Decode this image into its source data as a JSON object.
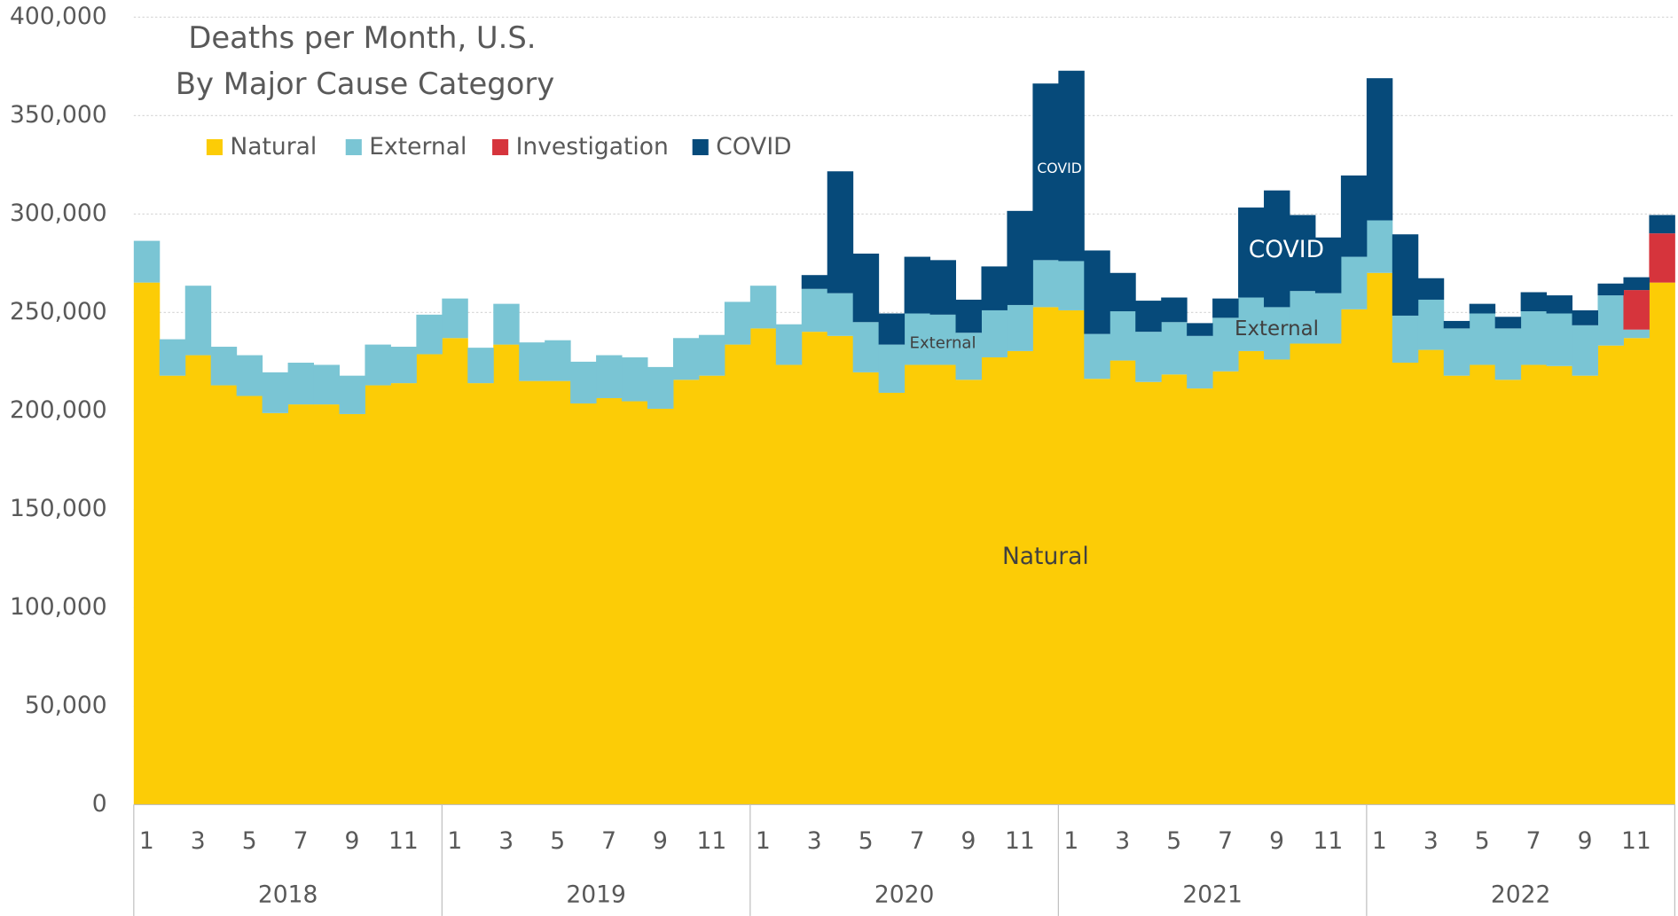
{
  "chart_data": {
    "type": "stacked-step-bar",
    "title": "Deaths per Month, U.S.",
    "subtitle": "By Major Cause Category",
    "categories": [
      "1",
      null,
      "3",
      null,
      "5",
      null,
      "7",
      null,
      "9",
      null,
      "11",
      null,
      "1",
      null,
      "3",
      null,
      "5",
      null,
      "7",
      null,
      "9",
      null,
      "11",
      null,
      "1",
      null,
      "3",
      null,
      "5",
      null,
      "7",
      null,
      "9",
      null,
      "11",
      null,
      "1",
      null,
      "3",
      null,
      "5",
      null,
      "7",
      null,
      "9",
      null,
      "11",
      null,
      "1",
      null,
      "3",
      null,
      "5",
      null,
      "7",
      null,
      "9",
      null,
      "11",
      null
    ],
    "years": [
      "2018",
      "2019",
      "2020",
      "2021",
      "2022"
    ],
    "series": [
      {
        "name": "Natural",
        "color": "#fccc06",
        "values": [
          265200,
          217900,
          228300,
          213000,
          207600,
          198900,
          203300,
          203300,
          198400,
          213000,
          214100,
          228800,
          237000,
          214100,
          233700,
          215200,
          215200,
          203800,
          206500,
          204900,
          201100,
          215800,
          217900,
          233700,
          241900,
          223400,
          240200,
          238100,
          219600,
          209200,
          223400,
          223400,
          215800,
          227200,
          230400,
          252700,
          251100,
          216300,
          225600,
          214700,
          218500,
          211400,
          220100,
          230400,
          226100,
          234200,
          234200,
          251600,
          270100,
          224500,
          231000,
          217900,
          223400,
          215800,
          223400,
          222800,
          217900,
          233200,
          237000,
          265200
        ]
      },
      {
        "name": "External",
        "color": "#7ac5d4",
        "values": [
          21200,
          18500,
          35300,
          19600,
          20700,
          20700,
          21200,
          20100,
          19500,
          20700,
          18500,
          20100,
          20100,
          18000,
          20700,
          19600,
          20700,
          21200,
          21800,
          22300,
          21200,
          21200,
          20700,
          21700,
          21700,
          20600,
          21800,
          21700,
          25500,
          24500,
          26100,
          25500,
          23900,
          23900,
          23400,
          23900,
          25000,
          22800,
          25000,
          25500,
          26600,
          26700,
          27200,
          27200,
          26600,
          26700,
          25600,
          26700,
          26700,
          23900,
          25500,
          24000,
          26100,
          26100,
          27200,
          26700,
          25600,
          25500,
          4300,
          0
        ]
      },
      {
        "name": "Investigation",
        "color": "#d6343c",
        "values": [
          0,
          0,
          0,
          0,
          0,
          0,
          0,
          0,
          0,
          0,
          0,
          0,
          0,
          0,
          0,
          0,
          0,
          0,
          0,
          0,
          0,
          0,
          0,
          0,
          0,
          0,
          0,
          0,
          0,
          0,
          0,
          0,
          0,
          0,
          0,
          0,
          0,
          0,
          0,
          0,
          0,
          0,
          0,
          0,
          0,
          0,
          0,
          0,
          0,
          0,
          0,
          0,
          0,
          0,
          0,
          0,
          0,
          0,
          20100,
          25000
        ]
      },
      {
        "name": "COVID",
        "color": "#064a7a",
        "values": [
          0,
          0,
          0,
          0,
          0,
          0,
          0,
          0,
          0,
          0,
          0,
          0,
          0,
          0,
          0,
          0,
          0,
          0,
          0,
          0,
          0,
          0,
          0,
          0,
          0,
          0,
          7000,
          61900,
          34800,
          15800,
          28800,
          27700,
          16800,
          22300,
          47800,
          89700,
          96700,
          42400,
          19500,
          15800,
          12500,
          6500,
          9800,
          45700,
          59300,
          38600,
          28300,
          41300,
          72200,
          41300,
          10900,
          3800,
          4900,
          5900,
          9700,
          9200,
          7600,
          6000,
          6500,
          9300
        ]
      }
    ],
    "annotations": [
      "COVID",
      "External",
      "COVID",
      "External",
      "Natural"
    ],
    "ylim": [
      0,
      400000
    ],
    "yticks": [
      0,
      {
        "value": 50000,
        "label": "50,000"
      },
      {
        "value": 100000,
        "label": "100,000"
      },
      {
        "value": 150000,
        "label": "150,000"
      },
      {
        "value": 200000,
        "label": "200,000"
      },
      {
        "value": 250000,
        "label": "250,000"
      },
      {
        "value": 300000,
        "label": "300,000"
      },
      {
        "value": 350000,
        "label": "350,000"
      },
      {
        "value": 400000,
        "label": "400,000"
      }
    ],
    "grid": true
  }
}
